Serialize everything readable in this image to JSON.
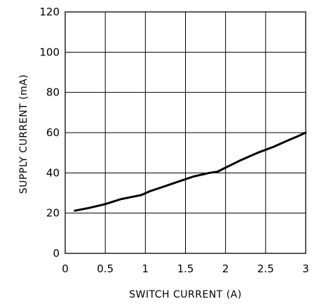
{
  "chart_data": {
    "type": "line",
    "title": "",
    "xlabel": "SWITCH CURRENT (A)",
    "ylabel": "SUPPLY CURRENT (mA)",
    "xlim": [
      0,
      3
    ],
    "ylim": [
      0,
      120
    ],
    "x_ticks": [
      "0",
      "0.5",
      "1",
      "1.5",
      "2",
      "2.5",
      "3"
    ],
    "y_ticks": [
      "0",
      "20",
      "40",
      "60",
      "80",
      "100",
      "120"
    ],
    "grid": true,
    "series": [
      {
        "x": [
          0.12,
          0.3,
          0.5,
          0.7,
          0.85,
          0.95,
          1.05,
          1.2,
          1.4,
          1.6,
          1.8,
          1.9,
          2.0,
          2.2,
          2.4,
          2.6,
          2.8,
          2.9,
          3.0
        ],
        "y": [
          21.2,
          22.6,
          24.5,
          27.0,
          28.2,
          29.0,
          30.8,
          32.8,
          35.5,
          38.2,
          40.0,
          40.6,
          42.6,
          46.5,
          50.0,
          53.0,
          56.5,
          58.2,
          60.0
        ]
      }
    ]
  }
}
